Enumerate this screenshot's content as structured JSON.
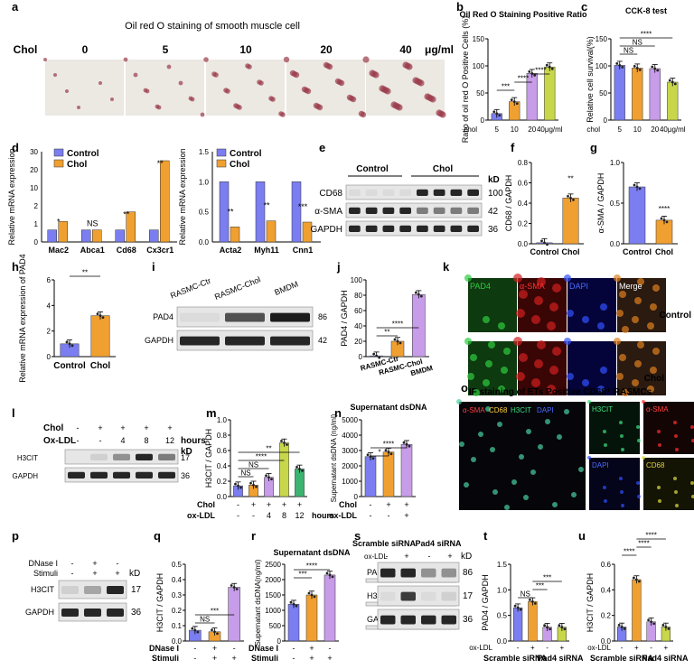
{
  "panels": {
    "a": {
      "letter": "a",
      "title": "Oil red O staining of smooth muscle cell",
      "row_label": "Chol",
      "doses": [
        "0",
        "5",
        "10",
        "20",
        "40"
      ],
      "unit": "μg/ml"
    },
    "b": {
      "letter": "b",
      "chart_data": {
        "type": "bar",
        "title": "Oil Red O Staining Positive Ratio",
        "ylabel": "Ratio of oil red O Positive Cells (%)",
        "xlabel_prefix": "chol",
        "categories": [
          "5",
          "10",
          "20",
          "40μg/ml"
        ],
        "values": [
          12,
          34,
          86,
          98
        ],
        "ylim": [
          0,
          150
        ],
        "yticks": [
          "0",
          "50",
          "100",
          "150"
        ],
        "colors": [
          "#7b7ef0",
          "#f0a030",
          "#c79ce8",
          "#c8d64a"
        ],
        "sig": [
          "***",
          "****",
          "****"
        ]
      }
    },
    "c": {
      "letter": "c",
      "chart_data": {
        "type": "bar",
        "title": "CCK-8 test",
        "ylabel": "Relative cell survival(%)",
        "xlabel_prefix": "chol",
        "categories": [
          "5",
          "10",
          "20",
          "40μg/ml"
        ],
        "values": [
          101,
          96,
          95,
          70
        ],
        "ylim": [
          0,
          150
        ],
        "yticks": [
          "0",
          "50",
          "100",
          "150"
        ],
        "colors": [
          "#7b7ef0",
          "#f0a030",
          "#c79ce8",
          "#c8d64a"
        ],
        "sig": [
          "NS",
          "NS",
          "****"
        ]
      }
    },
    "d": {
      "letter": "d",
      "legend": [
        "Control",
        "Chol"
      ],
      "chart_data": [
        {
          "type": "bar",
          "ylabel": "Relative mRNA expression",
          "categories": [
            "Mac2",
            "Abca1",
            "Cd68",
            "Cx3cr1"
          ],
          "series": [
            {
              "name": "Control",
              "values": [
                1.0,
                1.0,
                1.0,
                1.0
              ]
            },
            {
              "name": "Chol",
              "values": [
                1.7,
                1.0,
                4.0,
                21.0
              ]
            }
          ],
          "ylim": [
            0,
            30
          ],
          "yticks": [
            "0",
            "1",
            "2",
            "10",
            "20",
            "30"
          ],
          "sig": [
            "*",
            "NS",
            "**",
            "**"
          ]
        },
        {
          "type": "bar",
          "ylabel": "Relative mRNA expression",
          "categories": [
            "Acta2",
            "Myh11",
            "Cnn1"
          ],
          "series": [
            {
              "name": "Control",
              "values": [
                1.0,
                1.0,
                1.0
              ]
            },
            {
              "name": "Chol",
              "values": [
                0.25,
                0.35,
                0.33
              ]
            }
          ],
          "ylim": [
            0,
            1.5
          ],
          "yticks": [
            "0.0",
            "0.5",
            "1.0",
            "1.5"
          ],
          "sig": [
            "**",
            "**",
            "***"
          ]
        }
      ]
    },
    "e": {
      "letter": "e",
      "groups": [
        "Control",
        "Chol"
      ],
      "kd_label": "kD",
      "bands": [
        {
          "name": "CD68",
          "kd": "100"
        },
        {
          "name": "α-SMA",
          "kd": "42"
        },
        {
          "name": "GAPDH",
          "kd": "36"
        }
      ]
    },
    "f": {
      "letter": "f",
      "chart_data": {
        "type": "bar",
        "ylabel": "CD68 / GAPDH",
        "categories": [
          "Control",
          "Chol"
        ],
        "values": [
          0.01,
          0.45
        ],
        "ylim": [
          0,
          0.8
        ],
        "yticks": [
          "0.0",
          "0.2",
          "0.4",
          "0.6",
          "0.8"
        ],
        "colors": [
          "#7b7ef0",
          "#f0a030"
        ],
        "sig": [
          "**"
        ]
      }
    },
    "g": {
      "letter": "g",
      "chart_data": {
        "type": "bar",
        "ylabel": "α-SMA / GAPDH",
        "categories": [
          "Control",
          "Chol"
        ],
        "values": [
          0.7,
          0.29
        ],
        "ylim": [
          0,
          1.0
        ],
        "yticks": [
          "0.0",
          "0.5",
          "1.0"
        ],
        "colors": [
          "#7b7ef0",
          "#f0a030"
        ],
        "sig": [
          "****"
        ]
      }
    },
    "h": {
      "letter": "h",
      "chart_data": {
        "type": "bar",
        "ylabel": "Relative mRNA expression of PAD4",
        "categories": [
          "Control",
          "Chol"
        ],
        "values": [
          1.0,
          3.2
        ],
        "ylim": [
          0,
          6
        ],
        "yticks": [
          "0",
          "2",
          "4",
          "6"
        ],
        "colors": [
          "#7b7ef0",
          "#f0a030"
        ],
        "sig": [
          "**"
        ]
      }
    },
    "i": {
      "letter": "i",
      "lanes": [
        "RASMC-Ctr",
        "RASMC-Chol",
        "BMDM"
      ],
      "bands": [
        {
          "name": "PAD4",
          "kd": "86"
        },
        {
          "name": "GAPDH",
          "kd": "42"
        }
      ]
    },
    "j": {
      "letter": "j",
      "chart_data": {
        "type": "bar",
        "ylabel": "PAD4 / GAPDH",
        "categories": [
          "RASMC-Ctr",
          "RASMC-Chol",
          "BMDM"
        ],
        "values": [
          1,
          20,
          81
        ],
        "ylim": [
          0,
          100
        ],
        "yticks": [
          "0",
          "20",
          "40",
          "60",
          "80",
          "100"
        ],
        "colors": [
          "#7b7ef0",
          "#f0a030",
          "#c79ce8"
        ],
        "sig": [
          "**",
          "****"
        ]
      }
    },
    "k": {
      "letter": "k",
      "columns": [
        "PAD4",
        "α-SMA",
        "DAPI",
        "Merge"
      ],
      "rows": [
        "Control",
        "Chol"
      ]
    },
    "l": {
      "letter": "l",
      "row_labels": [
        "Chol",
        "Ox-LDL"
      ],
      "chol": [
        "-",
        "+",
        "+",
        "+",
        "+"
      ],
      "oxldl": [
        "-",
        "-",
        "4",
        "8",
        "12"
      ],
      "hours": "hours",
      "kd_label": "kD",
      "bands": [
        {
          "name": "H3CIT",
          "kd": "17"
        },
        {
          "name": "GAPDH",
          "kd": "36"
        }
      ]
    },
    "m": {
      "letter": "m",
      "chart_data": {
        "type": "bar",
        "ylabel": "H3CIT / GAPDH",
        "categories": [
          "1",
          "2",
          "3",
          "4",
          "5"
        ],
        "values": [
          0.14,
          0.15,
          0.25,
          0.7,
          0.36
        ],
        "ylim": [
          0,
          1.0
        ],
        "yticks": [
          "0.0",
          "0.2",
          "0.4",
          "0.6",
          "0.8",
          "1.0"
        ],
        "colors": [
          "#7b7ef0",
          "#f0a030",
          "#c79ce8",
          "#c8d64a",
          "#3cb371"
        ],
        "chol": [
          "-",
          "+",
          "+",
          "+",
          "+"
        ],
        "oxldl": [
          "-",
          "-",
          "4",
          "8",
          "12"
        ],
        "row_labels": [
          "Chol",
          "ox-LDL"
        ],
        "hours": "hours",
        "sig": [
          "NS",
          "NS",
          "****",
          "**"
        ]
      }
    },
    "n": {
      "letter": "n",
      "chart_data": {
        "type": "bar",
        "title": "Supernatant dsDNA",
        "ylabel": "Supernatant dsDNA (ng/ml)",
        "categories": [
          "1",
          "2",
          "3"
        ],
        "values": [
          2600,
          2900,
          3400
        ],
        "ylim": [
          0,
          5000
        ],
        "yticks": [
          "0",
          "1000",
          "2000",
          "3000",
          "4000",
          "5000"
        ],
        "colors": [
          "#7b7ef0",
          "#f0a030",
          "#c79ce8"
        ],
        "chol": [
          "-",
          "+",
          "+"
        ],
        "oxldl": [
          "-",
          "-",
          "+"
        ],
        "row_labels": [
          "Chol",
          "ox-LDL"
        ],
        "sig": [
          "*",
          "****"
        ]
      }
    },
    "o": {
      "letter": "o",
      "title": "IF staining of ETs Positive CD68⁺ RASMCs",
      "main_labels": [
        "α-SMA",
        "CD68",
        "H3CIT",
        "DAPI"
      ],
      "small_labels": [
        "H3CIT",
        "α-SMA",
        "DAPI",
        "CD68"
      ]
    },
    "p": {
      "letter": "p",
      "row_labels": [
        "DNase I",
        "Stimuli"
      ],
      "dnase": [
        "-",
        "+",
        "-"
      ],
      "stimuli": [
        "-",
        "+",
        "+"
      ],
      "kd_label": "kD",
      "bands": [
        {
          "name": "H3CIT",
          "kd": "17"
        },
        {
          "name": "GAPDH",
          "kd": "36"
        }
      ]
    },
    "q": {
      "letter": "q",
      "chart_data": {
        "type": "bar",
        "ylabel": "H3CIT / GAPDH",
        "categories": [
          "1",
          "2",
          "3"
        ],
        "values": [
          0.07,
          0.06,
          0.35
        ],
        "ylim": [
          0,
          0.5
        ],
        "yticks": [
          "0.0",
          "0.1",
          "0.2",
          "0.3",
          "0.4",
          "0.5"
        ],
        "colors": [
          "#7b7ef0",
          "#f0a030",
          "#c79ce8"
        ],
        "dnase": [
          "-",
          "+",
          "-"
        ],
        "stimuli": [
          "-",
          "+",
          "+"
        ],
        "row_labels": [
          "DNase I",
          "Stimuli"
        ],
        "sig": [
          "NS",
          "***"
        ]
      }
    },
    "r": {
      "letter": "r",
      "chart_data": {
        "type": "bar",
        "title": "Supernatant dsDNA",
        "ylabel": "Supernatant dsDNA(ng/ml)",
        "categories": [
          "1",
          "2",
          "3"
        ],
        "values": [
          1200,
          1500,
          2150
        ],
        "ylim": [
          0,
          2500
        ],
        "yticks": [
          "0",
          "500",
          "1000",
          "1500",
          "2000",
          "2500"
        ],
        "colors": [
          "#7b7ef0",
          "#f0a030",
          "#c79ce8"
        ],
        "dnase": [
          "-",
          "+",
          "-"
        ],
        "stimuli": [
          "-",
          "+",
          "+"
        ],
        "row_labels": [
          "DNase I",
          "Stimuli"
        ],
        "sig": [
          "***",
          "****"
        ]
      }
    },
    "s": {
      "letter": "s",
      "groups": [
        "Scramble siRNA",
        "Pad4 siRNA"
      ],
      "row_label": "ox-LDL",
      "oxldl": [
        "-",
        "+",
        "-",
        "+"
      ],
      "kd_label": "kD",
      "bands": [
        {
          "name": "PAD4",
          "kd": "86"
        },
        {
          "name": "H3CIT",
          "kd": "17"
        },
        {
          "name": "GAPDH",
          "kd": "36"
        }
      ]
    },
    "t": {
      "letter": "t",
      "chart_data": {
        "type": "bar",
        "ylabel": "PAD4 / GAPDH",
        "categories": [
          "1",
          "2",
          "3",
          "4"
        ],
        "values": [
          0.65,
          0.77,
          0.27,
          0.27
        ],
        "ylim": [
          0,
          1.5
        ],
        "yticks": [
          "0.0",
          "0.5",
          "1.0",
          "1.5"
        ],
        "colors": [
          "#7b7ef0",
          "#f0a030",
          "#c79ce8",
          "#c8d64a"
        ],
        "oxldl": [
          "-",
          "+",
          "-",
          "+"
        ],
        "row_label": "ox-LDL",
        "groups": [
          "Scramble siRNA",
          "Pad4 siRNA"
        ],
        "sig": [
          "NS",
          "***",
          "***"
        ]
      }
    },
    "u": {
      "letter": "u",
      "chart_data": {
        "type": "bar",
        "ylabel": "H3CIT / GAPDH",
        "categories": [
          "1",
          "2",
          "3",
          "4"
        ],
        "values": [
          0.11,
          0.48,
          0.15,
          0.11
        ],
        "ylim": [
          0,
          0.6
        ],
        "yticks": [
          "0.0",
          "0.2",
          "0.4",
          "0.6"
        ],
        "colors": [
          "#7b7ef0",
          "#f0a030",
          "#c79ce8",
          "#c8d64a"
        ],
        "oxldl": [
          "-",
          "+",
          "-",
          "+"
        ],
        "row_label": "ox-LDL",
        "groups": [
          "Scramble siRNA",
          "Pad4 siRNA"
        ],
        "sig": [
          "****",
          "****",
          "****"
        ]
      }
    }
  }
}
